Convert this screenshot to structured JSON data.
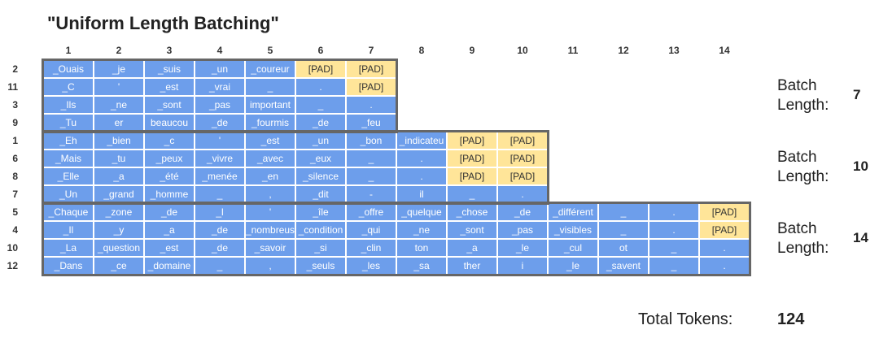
{
  "title": "\"Uniform Length Batching\"",
  "columns": [
    "1",
    "2",
    "3",
    "4",
    "5",
    "6",
    "7",
    "8",
    "9",
    "10",
    "11",
    "12",
    "13",
    "14"
  ],
  "rows": [
    {
      "label": "2",
      "cells": [
        "_Ouais",
        "_je",
        "_suis",
        "_un",
        "_coureur",
        "[PAD]",
        "[PAD]"
      ]
    },
    {
      "label": "11",
      "cells": [
        "_C",
        "'",
        "_est",
        "_vrai",
        "_",
        ".",
        "[PAD]"
      ]
    },
    {
      "label": "3",
      "cells": [
        "_Ils",
        "_ne",
        "_sont",
        "_pas",
        "important",
        "_",
        "."
      ]
    },
    {
      "label": "9",
      "cells": [
        "_Tu",
        "er",
        "beaucou",
        "_de",
        "_fourmis",
        "_de",
        "_feu"
      ]
    },
    {
      "label": "1",
      "cells": [
        "_Eh",
        "_bien",
        "_c",
        "'",
        "_est",
        "_un",
        "_bon",
        "_indicateu",
        "[PAD]",
        "[PAD]"
      ]
    },
    {
      "label": "6",
      "cells": [
        "_Mais",
        "_tu",
        "_peux",
        "_vivre",
        "_avec",
        "_eux",
        "_",
        ".",
        "[PAD]",
        "[PAD]"
      ]
    },
    {
      "label": "8",
      "cells": [
        "_Elle",
        "_a",
        "_été",
        "_menée",
        "_en",
        "_silence",
        "_",
        ".",
        "[PAD]",
        "[PAD]"
      ]
    },
    {
      "label": "7",
      "cells": [
        "_Un",
        "_grand",
        "_homme",
        "_",
        ",",
        "_dit",
        "-",
        "il",
        "_",
        "."
      ]
    },
    {
      "label": "5",
      "cells": [
        "_Chaque",
        "_zone",
        "_de",
        "_l",
        "'",
        "_île",
        "_offre",
        "_quelque",
        "_chose",
        "_de",
        "_différent",
        "_",
        ".",
        "[PAD]"
      ]
    },
    {
      "label": "4",
      "cells": [
        "_Il",
        "_y",
        "_a",
        "_de",
        "_nombreus",
        "_condition",
        "_qui",
        "_ne",
        "_sont",
        "_pas",
        "_visibles",
        "_",
        ".",
        "[PAD]"
      ]
    },
    {
      "label": "10",
      "cells": [
        "_La",
        "_question",
        "_est",
        "_de",
        "_savoir",
        "_si",
        "_clin",
        "ton",
        "_a",
        "_le",
        "_cul",
        "ot",
        "_",
        "."
      ]
    },
    {
      "label": "12",
      "cells": [
        "_Dans",
        "_ce",
        "_domaine",
        "_",
        ",",
        "_seuls",
        "_les",
        "_sa",
        "ther",
        "i",
        "_le",
        "_savent",
        "_",
        "."
      ]
    }
  ],
  "batches": [
    {
      "label": "Batch\nLength:",
      "value": "7"
    },
    {
      "label": "Batch\nLength:",
      "value": "10"
    },
    {
      "label": "Batch\nLength:",
      "value": "14"
    }
  ],
  "total": {
    "label": "Total Tokens:",
    "value": "124"
  },
  "colors": {
    "token": "#6d9eeb",
    "pad": "#ffe599",
    "border": "#666666"
  }
}
